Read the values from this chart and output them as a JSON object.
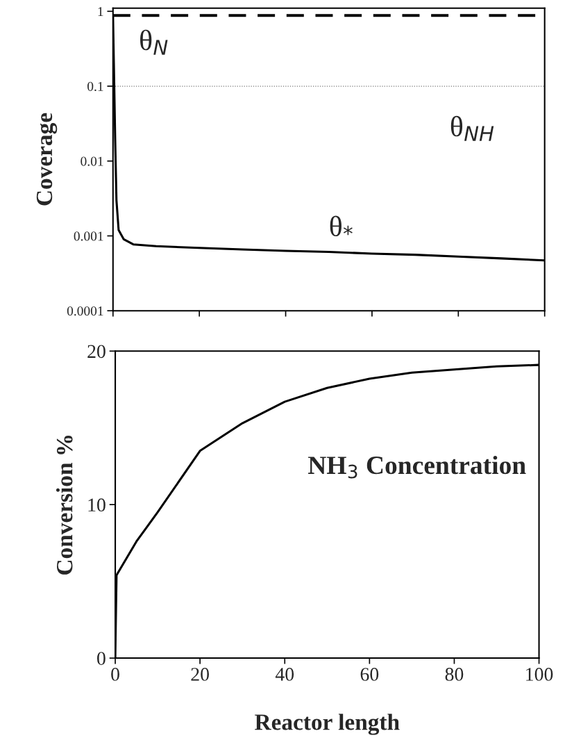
{
  "chart_data": [
    {
      "type": "line",
      "ylabel": "Coverage",
      "log": "y",
      "xlim": [
        0,
        100
      ],
      "ylim": [
        0.0001,
        1.1
      ],
      "xticks": [
        {
          "value": 0,
          "label": null
        },
        {
          "value": 20,
          "label": null
        },
        {
          "value": 40,
          "label": null
        },
        {
          "value": 60,
          "label": null
        },
        {
          "value": 80,
          "label": null
        },
        {
          "value": 100,
          "label": null
        }
      ],
      "yticks": [
        {
          "value": 0.0001,
          "label": "0.0001"
        },
        {
          "value": 0.001,
          "label": "0.001"
        },
        {
          "value": 0.01,
          "label": "0.01"
        },
        {
          "value": 0.1,
          "label": "0.1"
        },
        {
          "value": 1,
          "label": "1"
        }
      ],
      "tick_labels": "y",
      "grid": false,
      "legend": false,
      "series": [
        {
          "name": "θ$_{N}$",
          "color": "#000000",
          "line_style": "dashed",
          "x": [
            0,
            100
          ],
          "values": [
            0.88,
            0.88
          ]
        },
        {
          "name": "θ$_{NH}$",
          "color": "#777777",
          "line_style": "dotted",
          "x": [
            0,
            100
          ],
          "values": [
            0.1,
            0.1
          ]
        },
        {
          "name": "θ$_{*}$",
          "color": "#000000",
          "line_style": "solid",
          "x": [
            0,
            0.2,
            0.5,
            0.8,
            1.3,
            2.5,
            4.7,
            10,
            20,
            30,
            40,
            50,
            60,
            70,
            80,
            90,
            100
          ],
          "values": [
            0.9,
            0.2,
            0.02,
            0.003,
            0.0012,
            0.0009,
            0.00077,
            0.00073,
            0.00069,
            0.00066,
            0.00063,
            0.00061,
            0.00058,
            0.00056,
            0.00053,
            0.0005,
            0.00047
          ]
        }
      ]
    },
    {
      "type": "line",
      "xlabel": "Reactor length",
      "ylabel": "Conversion %",
      "xlim": [
        0,
        100
      ],
      "ylim": [
        0,
        20
      ],
      "xticks": [
        0,
        20,
        40,
        60,
        80,
        100
      ],
      "yticks": [
        0,
        10,
        20
      ],
      "grid": false,
      "legend": false,
      "series": [
        {
          "name": "NH$_{3}$ Concentration",
          "color": "#000000",
          "line_style": "solid",
          "x": [
            0,
            0.3,
            5,
            10,
            20,
            30,
            40,
            50,
            60,
            70,
            80,
            90,
            100
          ],
          "values": [
            0,
            5.4,
            7.6,
            9.5,
            13.5,
            15.3,
            16.7,
            17.6,
            18.2,
            18.6,
            18.8,
            19.0,
            19.1
          ]
        }
      ]
    }
  ]
}
